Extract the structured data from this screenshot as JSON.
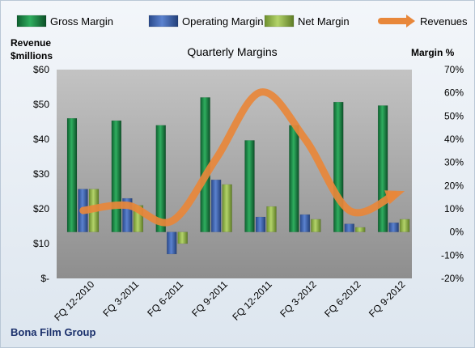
{
  "chart_data": {
    "type": "bar",
    "title": "Quarterly Margins",
    "company": "Bona Film Group",
    "left_axis_title_line1": "Revenue",
    "left_axis_title_line2": "$millions",
    "right_axis_title": "Margin %",
    "categories": [
      "FQ 12-2010",
      "FQ 3-2011",
      "FQ 6-2011",
      "FQ 9-2011",
      "FQ 12-2011",
      "FQ 3-2012",
      "FQ 6-2012",
      "FQ 9-2012"
    ],
    "left_axis": {
      "ylim": [
        0,
        60
      ],
      "ticks": [
        "$-",
        "$10",
        "$20",
        "$30",
        "$40",
        "$50",
        "$60"
      ]
    },
    "right_axis": {
      "ylim": [
        -20,
        70
      ],
      "ticks": [
        "-20%",
        "-10%",
        "0%",
        "10%",
        "20%",
        "30%",
        "40%",
        "50%",
        "60%",
        "70%"
      ]
    },
    "series": [
      {
        "name": "Gross Margin",
        "axis": "right",
        "values": [
          49.0,
          48.0,
          46.0,
          58.0,
          39.5,
          46.0,
          56.0,
          54.5
        ],
        "color": "#1e8f4e"
      },
      {
        "name": "Operating Margin",
        "axis": "right",
        "values": [
          18.5,
          14.5,
          -9.5,
          22.5,
          6.5,
          7.5,
          3.5,
          4.0
        ],
        "color": "#3c64b1"
      },
      {
        "name": "Net Margin",
        "axis": "right",
        "values": [
          18.5,
          11.5,
          -5.0,
          20.5,
          11.0,
          5.5,
          2.0,
          5.5
        ],
        "color": "#8fb545"
      },
      {
        "name": "Revenues",
        "type": "line",
        "axis": "left",
        "values": [
          19.5,
          21.0,
          16.5,
          34.5,
          53.5,
          40.0,
          19.5,
          24.0
        ],
        "color": "#e8873a"
      }
    ],
    "grid": false,
    "legend_position": "top"
  }
}
